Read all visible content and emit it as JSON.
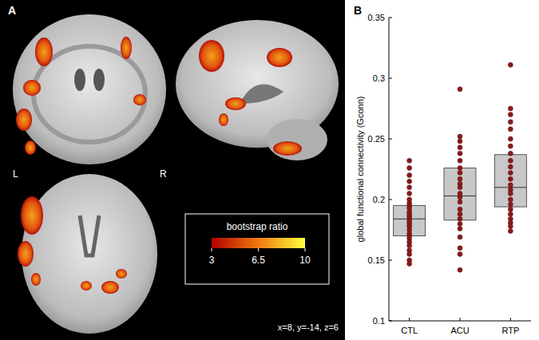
{
  "chart_data": [
    {
      "type": "brain_map",
      "panel": "A",
      "left_label": "L",
      "right_label": "R",
      "annotation": "x=8, y=-14, z=6",
      "colorbar": {
        "title": "bootstrap ratio",
        "range": [
          3,
          10
        ],
        "ticks": [
          3,
          6.5,
          10
        ]
      }
    },
    {
      "type": "box",
      "panel": "B",
      "y_label": "global functional connectivity (Gconn)",
      "categories": [
        "CTL",
        "ACU",
        "RTP"
      ],
      "ylim": [
        0.1,
        0.35
      ],
      "yticks": [
        0.1,
        0.15,
        0.2,
        0.25,
        0.3,
        0.35
      ],
      "grid": false,
      "color": "#8b1a1a",
      "boxes": [
        {
          "q1": 0.17,
          "median": 0.184,
          "q3": 0.195,
          "points": [
            0.232,
            0.226,
            0.22,
            0.215,
            0.21,
            0.205,
            0.2,
            0.197,
            0.195,
            0.193,
            0.19,
            0.188,
            0.186,
            0.184,
            0.182,
            0.18,
            0.178,
            0.175,
            0.172,
            0.17,
            0.168,
            0.165,
            0.162,
            0.158,
            0.155,
            0.15,
            0.147
          ]
        },
        {
          "q1": 0.183,
          "median": 0.203,
          "q3": 0.226,
          "points": [
            0.291,
            0.252,
            0.248,
            0.243,
            0.238,
            0.232,
            0.226,
            0.222,
            0.217,
            0.213,
            0.21,
            0.205,
            0.202,
            0.198,
            0.192,
            0.188,
            0.184,
            0.18,
            0.176,
            0.169,
            0.16,
            0.155,
            0.142
          ]
        },
        {
          "q1": 0.194,
          "median": 0.21,
          "q3": 0.237,
          "points": [
            0.311,
            0.275,
            0.27,
            0.264,
            0.258,
            0.25,
            0.244,
            0.238,
            0.232,
            0.227,
            0.222,
            0.217,
            0.212,
            0.208,
            0.205,
            0.2,
            0.196,
            0.192,
            0.188,
            0.184,
            0.181,
            0.178,
            0.174
          ]
        }
      ]
    }
  ]
}
